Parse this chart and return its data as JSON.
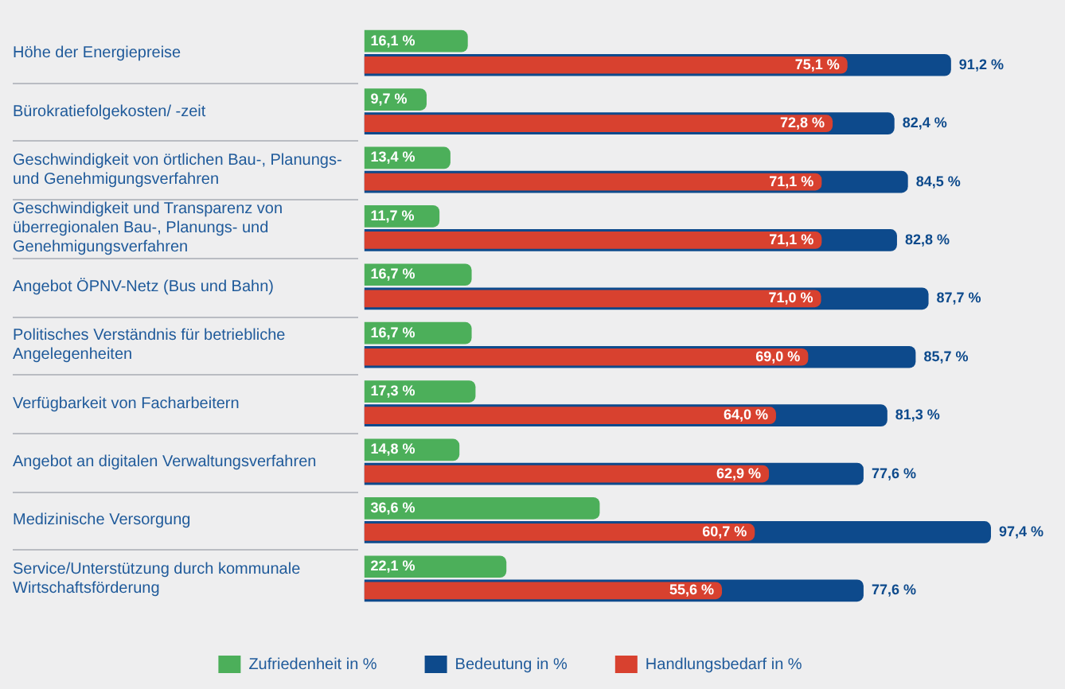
{
  "chart_data": {
    "type": "bar",
    "orientation": "horizontal",
    "legend": "bottom",
    "tick_labels": "y",
    "categories": [
      "Höhe der Energiepreise",
      "Bürokratiefolgekosten/ -zeit",
      "Geschwindigkeit von örtlichen Bau-, Planungs- und Genehmigungsverfahren",
      "Geschwindigkeit und Transparenz von überregionalen Bau-, Planungs- und Genehmigungsverfahren",
      "Angebot ÖPNV-Netz (Bus und Bahn)",
      "Politisches Verständnis für betriebliche Angelegenheiten",
      "Verfügbarkeit von Facharbeitern",
      "Angebot an digitalen Verwaltungsverfahren",
      "Medizinische Versorgung",
      "Service/Unterstützung durch kommunale Wirtschaftsförderung"
    ],
    "series": [
      {
        "name": "Zufriedenheit in %",
        "color": "#4caf5a",
        "values": [
          16.1,
          9.7,
          13.4,
          11.7,
          16.7,
          16.7,
          17.3,
          14.8,
          36.6,
          22.1
        ],
        "value_labels": [
          "16,1 %",
          "9,7 %",
          "13,4 %",
          "11,7 %",
          "16,7 %",
          "16,7 %",
          "17,3 %",
          "14,8 %",
          "36,6 %",
          "22,1 %"
        ]
      },
      {
        "name": "Bedeutung in %",
        "color": "#0d4a8c",
        "values": [
          91.2,
          82.4,
          84.5,
          82.8,
          87.7,
          85.7,
          81.3,
          77.6,
          97.4,
          77.6
        ],
        "value_labels": [
          "91,2 %",
          "82,4 %",
          "84,5 %",
          "82,8 %",
          "87,7 %",
          "85,7 %",
          "81,3 %",
          "77,6 %",
          "97,4 %",
          "77,6 %"
        ]
      },
      {
        "name": "Handlungsbedarf in %",
        "color": "#d8412f",
        "values": [
          75.1,
          72.8,
          71.1,
          71.1,
          71.0,
          69.0,
          64.0,
          62.9,
          60.7,
          55.6
        ],
        "value_labels": [
          "75,1 %",
          "72,8 %",
          "71,1 %",
          "71,1 %",
          "71,0 %",
          "69,0 %",
          "64,0 %",
          "62,9 %",
          "60,7 %",
          "55,6 %"
        ]
      }
    ]
  }
}
